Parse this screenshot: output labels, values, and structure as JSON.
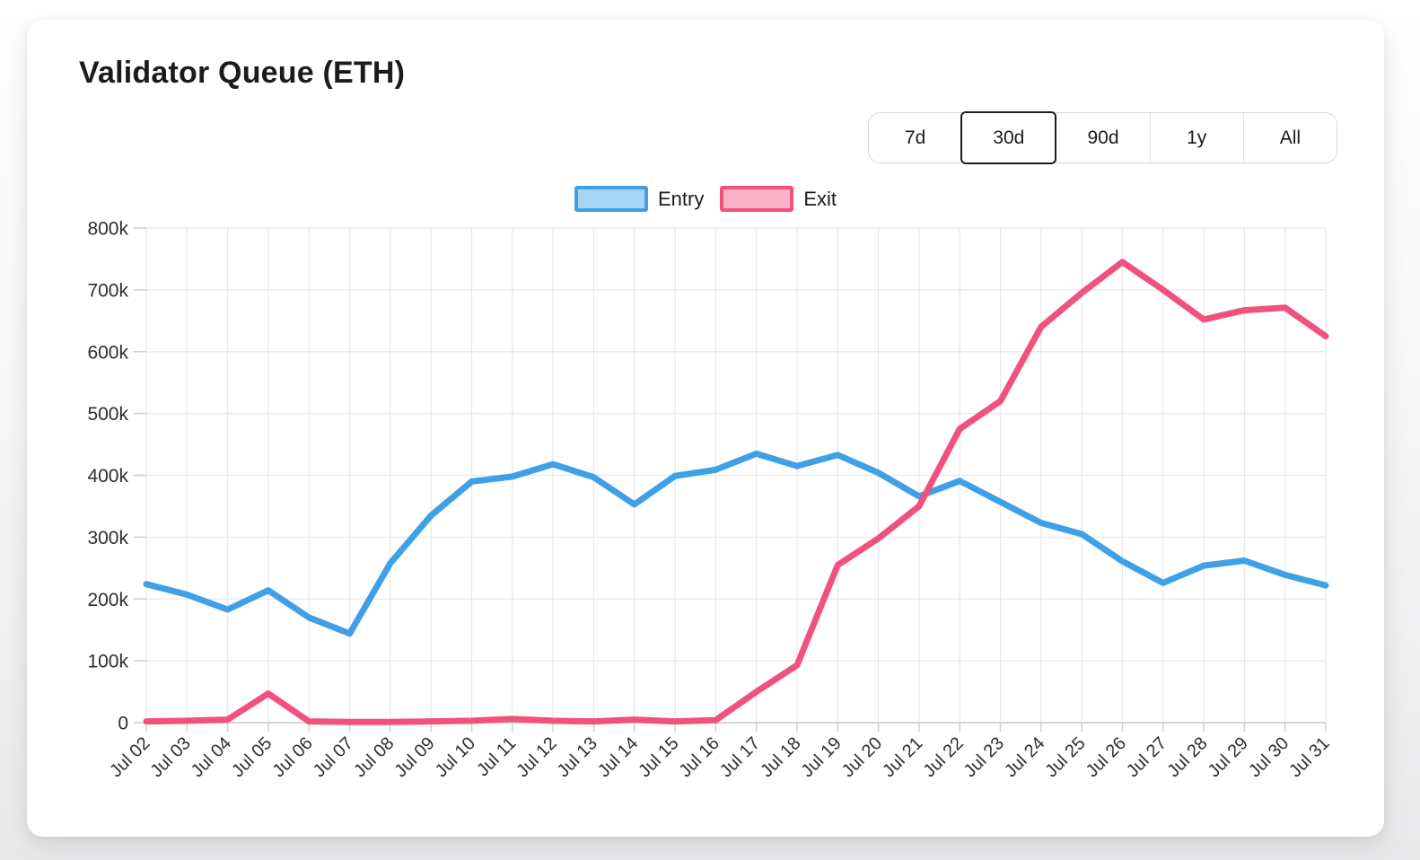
{
  "header": {
    "title": "Validator Queue (ETH)"
  },
  "range_selector": {
    "options": [
      {
        "label": "7d",
        "active": false
      },
      {
        "label": "30d",
        "active": true
      },
      {
        "label": "90d",
        "active": false
      },
      {
        "label": "1y",
        "active": false
      },
      {
        "label": "All",
        "active": false
      }
    ]
  },
  "legend": {
    "position": "top",
    "items": [
      {
        "label": "Entry",
        "line_color": "#3FA0E8",
        "fill_color": "#A9D5F4"
      },
      {
        "label": "Exit",
        "line_color": "#F0527C",
        "fill_color": "#F8B1C5"
      }
    ]
  },
  "chart_data": {
    "type": "line",
    "title": "Validator Queue (ETH)",
    "xlabel": "",
    "ylabel": "",
    "categories": [
      "Jul 02",
      "Jul 03",
      "Jul 04",
      "Jul 05",
      "Jul 06",
      "Jul 07",
      "Jul 08",
      "Jul 09",
      "Jul 10",
      "Jul 11",
      "Jul 12",
      "Jul 13",
      "Jul 14",
      "Jul 15",
      "Jul 16",
      "Jul 17",
      "Jul 18",
      "Jul 19",
      "Jul 20",
      "Jul 21",
      "Jul 22",
      "Jul 23",
      "Jul 24",
      "Jul 25",
      "Jul 26",
      "Jul 27",
      "Jul 28",
      "Jul 29",
      "Jul 30",
      "Jul 31"
    ],
    "series": [
      {
        "name": "Entry",
        "color": "#3FA0E8",
        "values": [
          224000,
          207000,
          183000,
          214000,
          170000,
          144000,
          258000,
          335000,
          390000,
          398000,
          418000,
          397000,
          353000,
          399000,
          409000,
          435000,
          415000,
          433000,
          404000,
          366000,
          391000,
          357000,
          323000,
          305000,
          261000,
          226000,
          254000,
          262000,
          239000,
          222000
        ]
      },
      {
        "name": "Exit",
        "color": "#F0527C",
        "values": [
          2000,
          3000,
          5000,
          47000,
          2000,
          1000,
          1000,
          2000,
          3000,
          6000,
          3000,
          2000,
          5000,
          2000,
          4000,
          50000,
          93000,
          255000,
          298000,
          350000,
          475000,
          520000,
          640000,
          695000,
          745000,
          700000,
          652000,
          667000,
          671000,
          625000
        ]
      }
    ],
    "ylim": [
      0,
      800000
    ],
    "ytick_step": 100000,
    "ytick_labels": [
      "0",
      "100k",
      "200k",
      "300k",
      "400k",
      "500k",
      "600k",
      "700k",
      "800k"
    ],
    "grid": true,
    "legend_position": "top"
  }
}
